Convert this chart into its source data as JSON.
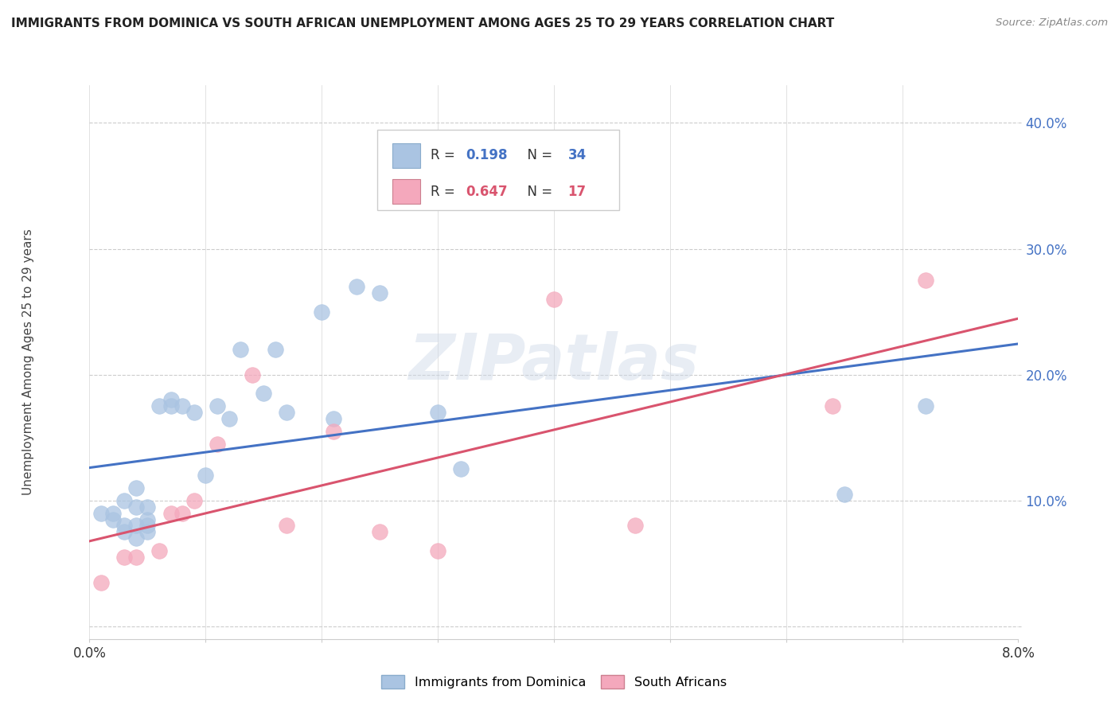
{
  "title": "IMMIGRANTS FROM DOMINICA VS SOUTH AFRICAN UNEMPLOYMENT AMONG AGES 25 TO 29 YEARS CORRELATION CHART",
  "source": "Source: ZipAtlas.com",
  "ylabel": "Unemployment Among Ages 25 to 29 years",
  "xlim": [
    0.0,
    0.08
  ],
  "ylim": [
    -0.01,
    0.43
  ],
  "blue_color": "#aac4e2",
  "pink_color": "#f4a8bc",
  "blue_line_color": "#4472c4",
  "pink_line_color": "#d9546e",
  "legend_R_blue": "0.198",
  "legend_N_blue": "34",
  "legend_R_pink": "0.647",
  "legend_N_pink": "17",
  "legend_label_blue": "Immigrants from Dominica",
  "legend_label_pink": "South Africans",
  "watermark": "ZIPatlas",
  "blue_x": [
    0.001,
    0.002,
    0.002,
    0.003,
    0.003,
    0.003,
    0.004,
    0.004,
    0.004,
    0.004,
    0.005,
    0.005,
    0.005,
    0.005,
    0.006,
    0.007,
    0.007,
    0.008,
    0.009,
    0.01,
    0.011,
    0.012,
    0.013,
    0.015,
    0.016,
    0.017,
    0.02,
    0.021,
    0.023,
    0.025,
    0.03,
    0.032,
    0.065,
    0.072
  ],
  "blue_y": [
    0.09,
    0.085,
    0.09,
    0.075,
    0.08,
    0.1,
    0.07,
    0.08,
    0.095,
    0.11,
    0.075,
    0.08,
    0.085,
    0.095,
    0.175,
    0.18,
    0.175,
    0.175,
    0.17,
    0.12,
    0.175,
    0.165,
    0.22,
    0.185,
    0.22,
    0.17,
    0.25,
    0.165,
    0.27,
    0.265,
    0.17,
    0.125,
    0.105,
    0.175
  ],
  "pink_x": [
    0.001,
    0.003,
    0.004,
    0.006,
    0.007,
    0.008,
    0.009,
    0.011,
    0.014,
    0.017,
    0.021,
    0.025,
    0.03,
    0.04,
    0.047,
    0.064,
    0.072
  ],
  "pink_y": [
    0.035,
    0.055,
    0.055,
    0.06,
    0.09,
    0.09,
    0.1,
    0.145,
    0.2,
    0.08,
    0.155,
    0.075,
    0.06,
    0.26,
    0.08,
    0.175,
    0.275
  ],
  "y_ticks": [
    0.0,
    0.1,
    0.2,
    0.3,
    0.4
  ],
  "y_tick_labels": [
    "",
    "10.0%",
    "20.0%",
    "30.0%",
    "40.0%"
  ],
  "x_ticks": [
    0.0,
    0.01,
    0.02,
    0.03,
    0.04,
    0.05,
    0.06,
    0.07,
    0.08
  ],
  "x_tick_labels": [
    "0.0%",
    "",
    "",
    "",
    "",
    "",
    "",
    "",
    "8.0%"
  ]
}
